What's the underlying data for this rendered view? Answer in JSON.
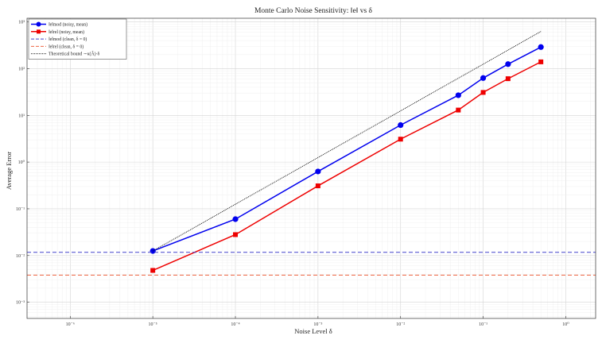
{
  "chart_data": {
    "type": "line",
    "title": "Monte Carlo Noise Sensitivity: ‖e‖ vs δ",
    "xlabel": "Noise Level δ",
    "ylabel": "Average Error",
    "xscale": "log",
    "yscale": "log",
    "xlim": [
      3e-07,
      2.3
    ],
    "ylim": [
      0.00045,
      1200
    ],
    "grid": true,
    "legend_position": "top-left",
    "x_ticks": [
      1e-06,
      1e-05,
      0.0001,
      0.001,
      0.01,
      0.1,
      1
    ],
    "x_tick_labels": [
      "10⁻⁶",
      "10⁻⁵",
      "10⁻⁴",
      "10⁻³",
      "10⁻²",
      "10⁻¹",
      "10⁰"
    ],
    "y_ticks": [
      0.001,
      0.01,
      0.1,
      1,
      10,
      100,
      1000
    ],
    "y_tick_labels": [
      "10⁻³",
      "10⁻²",
      "10⁻¹",
      "10⁰",
      "10¹",
      "10²",
      "10³"
    ],
    "x": [
      1e-05,
      0.0001,
      0.001,
      0.01,
      0.05,
      0.1,
      0.2,
      0.5
    ],
    "series": [
      {
        "name": "‖e‖_{mod} (noisy, mean)",
        "legend_label": "‖e‖mod (noisy, mean)",
        "color": "#0000ee",
        "marker": "circle",
        "style": "solid",
        "x": [
          1e-05,
          0.0001,
          0.001,
          0.01,
          0.05,
          0.1,
          0.2,
          0.5
        ],
        "values": [
          0.0125,
          0.06,
          0.63,
          6.2,
          27,
          63,
          125,
          290
        ]
      },
      {
        "name": "‖e‖_{rel} (noisy, mean)",
        "legend_label": "‖e‖rel (noisy, mean)",
        "color": "#ee0000",
        "marker": "square",
        "style": "solid",
        "x": [
          1e-05,
          0.0001,
          0.001,
          0.01,
          0.05,
          0.1,
          0.2,
          0.5
        ],
        "values": [
          0.0048,
          0.028,
          0.31,
          3.1,
          13,
          31,
          61,
          140
        ]
      },
      {
        "name": "‖e‖_{mod} (clean, δ = 0)",
        "legend_label": "‖e‖mod (clean, δ = 0)",
        "color": "#4444cc",
        "marker": "none",
        "style": "dashed",
        "x": [
          3e-07,
          2.3
        ],
        "values": [
          0.0117,
          0.0117
        ]
      },
      {
        "name": "‖e‖_{rel} (clean, δ = 0)",
        "legend_label": "‖e‖rel (clean, δ = 0)",
        "color": "#ee6644",
        "marker": "none",
        "style": "dashed",
        "x": [
          3e-07,
          2.3
        ],
        "values": [
          0.0038,
          0.0038
        ]
      },
      {
        "name": "Theoretical bound ∼κ(Ã)·δ",
        "legend_label": "Theoretical bound ∼κ(Ã)·δ",
        "color": "#000000",
        "marker": "none",
        "style": "dotted",
        "x": [
          1e-05,
          0.5
        ],
        "values": [
          0.0125,
          625
        ]
      }
    ]
  }
}
